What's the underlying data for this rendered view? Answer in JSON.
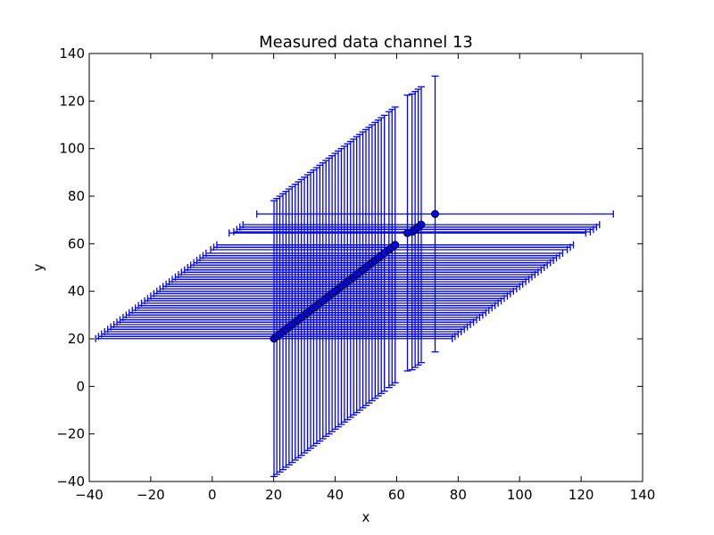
{
  "chart_data": {
    "type": "scatter",
    "title": "Measured data channel 13",
    "xlabel": "x",
    "ylabel": "y",
    "xlim": [
      -40,
      140
    ],
    "ylim": [
      -40,
      140
    ],
    "xticks": [
      -40,
      -20,
      0,
      20,
      40,
      60,
      80,
      100,
      120,
      140
    ],
    "yticks": [
      -40,
      -20,
      0,
      20,
      40,
      60,
      80,
      100,
      120,
      140
    ],
    "grid": false,
    "colors": {
      "errorbar": "#0000ff",
      "marker": "#0000ff",
      "marker_edge": "#000000"
    },
    "series": [
      {
        "x": [
          20.1,
          21.0,
          22.0,
          23.0,
          24.0,
          25.0,
          26.0,
          27.0,
          28.0,
          29.0,
          30.0,
          31.0,
          32.0,
          33.0,
          34.0,
          35.0,
          36.0,
          37.0,
          38.0,
          39.0,
          40.0,
          41.0,
          42.0,
          43.0,
          44.0,
          45.0,
          46.0,
          47.0,
          48.0,
          49.0,
          50.0,
          51.0,
          52.0,
          53.0,
          54.0,
          55.0,
          56.0,
          57.5,
          58.5,
          59.5,
          63.5,
          65.0,
          66.0,
          67.0,
          68.0,
          72.5
        ],
        "y": [
          20.1,
          21.0,
          22.0,
          23.0,
          24.0,
          25.0,
          26.0,
          27.0,
          28.0,
          29.0,
          30.0,
          31.0,
          32.0,
          33.0,
          34.0,
          35.0,
          36.0,
          37.0,
          38.0,
          39.0,
          40.0,
          41.0,
          42.0,
          43.0,
          44.0,
          45.0,
          46.0,
          47.0,
          48.0,
          49.0,
          50.0,
          51.0,
          52.0,
          53.0,
          54.0,
          55.0,
          56.0,
          57.5,
          58.5,
          59.5,
          64.5,
          65.0,
          66.0,
          67.0,
          68.0,
          72.5
        ],
        "err": [
          58.0,
          58.0,
          58.0,
          58.0,
          58.0,
          58.0,
          58.0,
          58.0,
          58.0,
          58.0,
          58.0,
          58.0,
          58.0,
          58.0,
          58.0,
          58.0,
          58.0,
          58.0,
          58.0,
          58.0,
          58.0,
          58.0,
          58.0,
          58.0,
          58.0,
          58.0,
          58.0,
          58.0,
          58.0,
          58.0,
          58.0,
          58.0,
          58.0,
          58.0,
          58.0,
          58.0,
          58.0,
          58.0,
          58.0,
          58.0,
          58.0,
          58.0,
          58.0,
          58.0,
          58.0,
          58.0
        ]
      }
    ]
  }
}
